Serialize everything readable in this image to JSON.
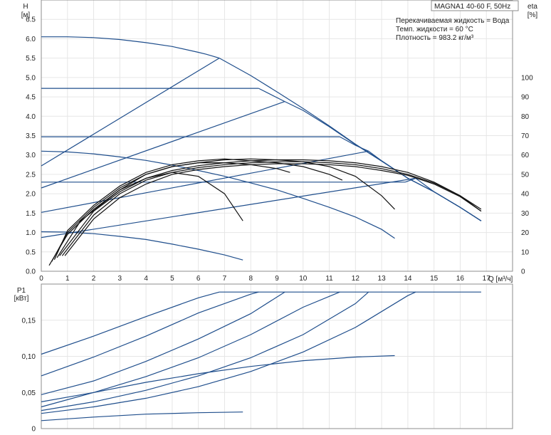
{
  "chart_data": [
    {
      "type": "line",
      "title": "MAGNA1 40-60 F, 50Hz",
      "notes": [
        "Перекачиваемая жидкость = Вода",
        "Темп. жидкости = 60 °C",
        "Плотность = 983.2 кг/м³"
      ],
      "xlabel": "Q [м³/ч]",
      "ylabel_left": [
        "H",
        "[м]"
      ],
      "ylabel_right": [
        "eta",
        "[%]"
      ],
      "xlim": [
        0,
        18
      ],
      "ylim_left": [
        0,
        7
      ],
      "ylim_right": [
        0,
        140
      ],
      "x_ticks": [
        "0",
        "1",
        "2",
        "3",
        "4",
        "5",
        "6",
        "7",
        "8",
        "9",
        "10",
        "11",
        "12",
        "13",
        "14",
        "15",
        "16",
        "17"
      ],
      "y_ticks_left": [
        "0.0",
        "0.5",
        "1.0",
        "1.5",
        "2.0",
        "2.5",
        "3.0",
        "3.5",
        "4.0",
        "4.5",
        "5.0",
        "5.5",
        "6.0",
        "6.5"
      ],
      "y_ticks_right": [
        "0",
        "10",
        "20",
        "30",
        "40",
        "50",
        "60",
        "70",
        "80",
        "90",
        "100"
      ],
      "grid": true,
      "colors": {
        "head_curves": "#1f4e8c",
        "efficiency_curves": "#111111",
        "grid": "#e6e6e6"
      },
      "head_curves": [
        {
          "x": [
            0,
            1,
            2,
            3,
            4,
            5,
            6,
            6.3,
            6.8
          ],
          "y": [
            6.05,
            6.05,
            6.03,
            5.98,
            5.9,
            5.8,
            5.65,
            5.6,
            5.5
          ]
        },
        {
          "x": [
            0,
            8.3
          ],
          "y": [
            4.72,
            4.72
          ]
        },
        {
          "x": [
            0,
            11.4
          ],
          "y": [
            3.47,
            3.47
          ]
        },
        {
          "x": [
            0,
            13.9
          ],
          "y": [
            2.3,
            2.3
          ]
        },
        {
          "x": [
            0,
            1,
            2,
            3,
            4,
            5,
            6,
            7,
            8,
            9,
            10,
            11,
            12,
            13,
            13.5
          ],
          "y": [
            3.1,
            3.08,
            3.03,
            2.95,
            2.86,
            2.74,
            2.6,
            2.45,
            2.28,
            2.1,
            1.88,
            1.65,
            1.4,
            1.08,
            0.85
          ]
        },
        {
          "x": [
            0,
            1,
            2,
            3,
            4,
            5,
            6,
            7,
            7.7
          ],
          "y": [
            1.02,
            1.01,
            0.97,
            0.9,
            0.82,
            0.7,
            0.57,
            0.42,
            0.29
          ]
        },
        {
          "x": [
            6.8,
            8,
            9,
            10,
            11,
            12,
            13,
            14,
            15,
            16,
            16.8
          ],
          "y": [
            5.5,
            5.05,
            4.63,
            4.2,
            3.75,
            3.28,
            2.85,
            2.4,
            2.05,
            1.65,
            1.3
          ]
        },
        {
          "x": [
            8.3,
            9.3,
            10,
            11,
            12,
            13,
            14,
            15,
            16,
            16.8
          ],
          "y": [
            4.72,
            4.38,
            4.15,
            3.73,
            3.27,
            2.84,
            2.4,
            2.05,
            1.65,
            1.3
          ]
        },
        {
          "x": [
            11.4,
            12,
            12.5,
            13,
            14,
            15,
            16,
            16.8
          ],
          "y": [
            3.47,
            3.25,
            3.1,
            2.85,
            2.4,
            2.05,
            1.65,
            1.3
          ]
        },
        {
          "x": [
            13.9,
            14.3,
            15,
            16,
            16.8
          ],
          "y": [
            2.3,
            2.4,
            2.05,
            1.65,
            1.3
          ]
        },
        {
          "x": [
            0,
            6.8
          ],
          "y": [
            2.72,
            5.5
          ]
        },
        {
          "x": [
            0,
            9.3
          ],
          "y": [
            2.15,
            4.38
          ]
        },
        {
          "x": [
            0,
            12.5
          ],
          "y": [
            1.52,
            3.1
          ]
        },
        {
          "x": [
            0,
            14.3
          ],
          "y": [
            0.87,
            2.4
          ]
        }
      ],
      "efficiency_curves": [
        {
          "x": [
            0.3,
            1,
            2,
            3,
            4,
            5,
            6,
            7,
            7.7
          ],
          "y": [
            3,
            19,
            32,
            42,
            48,
            51,
            49,
            40,
            26
          ]
        },
        {
          "x": [
            0.4,
            1,
            2,
            3,
            4,
            5,
            6,
            7,
            8,
            9,
            9.5
          ],
          "y": [
            5,
            20,
            33,
            43,
            50,
            54,
            56,
            56,
            55,
            53,
            51
          ]
        },
        {
          "x": [
            0.5,
            1,
            2,
            3,
            4,
            5,
            6,
            7,
            8,
            9,
            10,
            11,
            11.5
          ],
          "y": [
            6,
            21,
            34,
            44,
            51,
            55,
            57,
            58,
            57,
            56,
            54,
            50,
            47
          ]
        },
        {
          "x": [
            0.6,
            1.5,
            3,
            4,
            5,
            6,
            7,
            8,
            9,
            10,
            11,
            12,
            13,
            13.5
          ],
          "y": [
            7,
            26,
            42,
            50,
            54,
            56,
            57.5,
            58,
            57.5,
            56.5,
            54,
            49,
            39,
            32
          ]
        },
        {
          "x": [
            0.7,
            2,
            3,
            4,
            5,
            6,
            7,
            8,
            9,
            10,
            11,
            12,
            13,
            14,
            15,
            16,
            16.8
          ],
          "y": [
            8,
            31,
            41,
            48,
            52,
            54.5,
            56,
            57,
            57.5,
            57.5,
            57,
            56,
            54,
            51,
            46,
            39,
            31
          ]
        },
        {
          "x": [
            0.8,
            2,
            3,
            4,
            5,
            6,
            7,
            8,
            9,
            10,
            11,
            12,
            13,
            14,
            15,
            16,
            16.8
          ],
          "y": [
            8,
            29,
            40,
            47,
            51,
            53.5,
            55,
            56,
            56.5,
            56.5,
            56,
            55,
            53,
            50,
            45.5,
            39,
            32
          ]
        },
        {
          "x": [
            0.9,
            2,
            3,
            4,
            5,
            6,
            7,
            8,
            9,
            10,
            11,
            12,
            13,
            14,
            15,
            16,
            16.8
          ],
          "y": [
            8,
            27,
            38,
            45,
            50,
            52.5,
            54,
            55,
            55.5,
            55.5,
            55,
            54,
            52,
            49.5,
            45,
            38.5,
            31
          ]
        }
      ]
    },
    {
      "type": "line",
      "xlim": [
        0,
        18
      ],
      "ylim": [
        0,
        0.2
      ],
      "ylabel": [
        "P1",
        "[кВт]"
      ],
      "y_ticks": [
        "0",
        "0,05",
        "0,10",
        "0,15"
      ],
      "grid": true,
      "colors": {
        "curves": "#1f4e8c"
      },
      "power_curves": [
        {
          "x": [
            0,
            2,
            4,
            6,
            6.8
          ],
          "y": [
            0.103,
            0.128,
            0.155,
            0.181,
            0.189
          ]
        },
        {
          "x": [
            0,
            2,
            4,
            6,
            8,
            8.3
          ],
          "y": [
            0.073,
            0.099,
            0.128,
            0.16,
            0.186,
            0.189
          ]
        },
        {
          "x": [
            0,
            2,
            4,
            6,
            8,
            9.3
          ],
          "y": [
            0.047,
            0.066,
            0.093,
            0.124,
            0.159,
            0.189
          ]
        },
        {
          "x": [
            0,
            2,
            4,
            6,
            8,
            10,
            11.4
          ],
          "y": [
            0.03,
            0.05,
            0.072,
            0.098,
            0.13,
            0.168,
            0.189
          ]
        },
        {
          "x": [
            0,
            2,
            4,
            6,
            8,
            10,
            12,
            12.5
          ],
          "y": [
            0.025,
            0.037,
            0.053,
            0.073,
            0.098,
            0.13,
            0.173,
            0.189
          ]
        },
        {
          "x": [
            0,
            2,
            4,
            6,
            8,
            10,
            12,
            14,
            14.3
          ],
          "y": [
            0.021,
            0.03,
            0.042,
            0.058,
            0.079,
            0.106,
            0.14,
            0.184,
            0.189
          ]
        },
        {
          "x": [
            0,
            2,
            4,
            6,
            8,
            10,
            12,
            13.5
          ],
          "y": [
            0.037,
            0.05,
            0.064,
            0.076,
            0.086,
            0.094,
            0.099,
            0.101
          ]
        },
        {
          "x": [
            0,
            2,
            4,
            6,
            7.7
          ],
          "y": [
            0.011,
            0.016,
            0.02,
            0.022,
            0.023
          ]
        },
        {
          "x": [
            6.8,
            16.8
          ],
          "y": [
            0.189,
            0.189
          ]
        }
      ]
    }
  ]
}
